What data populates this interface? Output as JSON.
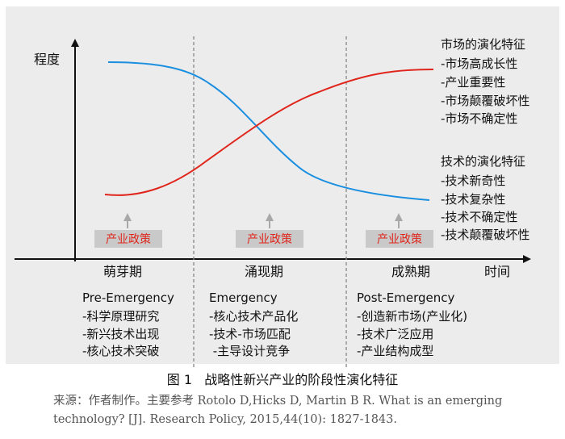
{
  "axes": {
    "y_label": "程度",
    "x_label": "时间"
  },
  "stages": [
    {
      "name": "萌芽期",
      "title": "Pre-Emergency",
      "items": [
        "-科学原理研究",
        "-新兴技术出现",
        "-核心技术突破"
      ]
    },
    {
      "name": "涌现期",
      "title": "Emergency",
      "items": [
        "-核心技术产品化",
        "-技术-市场匹配",
        " -主导设计竞争"
      ]
    },
    {
      "name": "成熟期",
      "title": "Post-Emergency",
      "items": [
        "-创造新市场(产业化)",
        "-技术广泛应用",
        "-产业结构成型"
      ]
    }
  ],
  "policy_label": "产业政策",
  "market_features": {
    "title": "市场的演化特征",
    "items": [
      "-市场高成长性",
      "-产业重要性",
      "-市场颠覆破坏性",
      "-市场不确定性"
    ]
  },
  "tech_features": {
    "title": "技术的演化特征",
    "items": [
      "-技术新奇性",
      "-技术复杂性",
      "-技术不确定性",
      "-技术颠覆破坏性"
    ]
  },
  "colors": {
    "market_curve": "#e0261c",
    "tech_curve": "#1a8fe0",
    "policy_box": "#c9c9c9",
    "divider": "#888888",
    "panel": "#ececec"
  },
  "caption": "图 1   战略性新兴产业的阶段性演化特征",
  "source": "来源：作者制作。主要参考 Rotolo D,Hicks D, Martin B R. What is an emerging technology? [J]. Research Policy, 2015,44(10): 1827-1843."
}
